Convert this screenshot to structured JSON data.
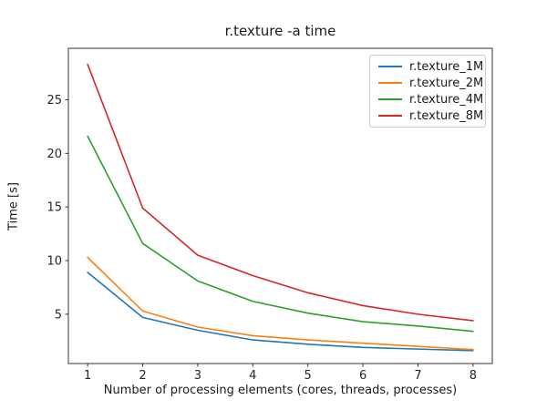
{
  "chart_data": {
    "type": "line",
    "title": "r.texture -a time",
    "xlabel": "Number of processing elements (cores, threads, processes)",
    "ylabel": "Time [s]",
    "x": [
      1,
      2,
      3,
      4,
      5,
      6,
      7,
      8
    ],
    "x_ticks": [
      1,
      2,
      3,
      4,
      5,
      6,
      7,
      8
    ],
    "x_tick_labels": [
      "1",
      "2",
      "3",
      "4",
      "5",
      "6",
      "7",
      "8"
    ],
    "y_ticks": [
      5,
      10,
      15,
      20,
      25
    ],
    "y_tick_labels": [
      "5",
      "10",
      "15",
      "20",
      "25"
    ],
    "xlim": [
      0.65,
      8.35
    ],
    "ylim": [
      0.4,
      29.8
    ],
    "grid": false,
    "legend_position": "upper right",
    "spine_color": "#555555",
    "tick_color": "#333333",
    "series": [
      {
        "name": "r.texture_1M",
        "color": "#1f77b4",
        "values": [
          8.9,
          4.7,
          3.5,
          2.6,
          2.2,
          1.9,
          1.75,
          1.6
        ]
      },
      {
        "name": "r.texture_2M",
        "color": "#ff7f0e",
        "values": [
          10.3,
          5.3,
          3.8,
          3.0,
          2.6,
          2.3,
          2.0,
          1.7
        ]
      },
      {
        "name": "r.texture_4M",
        "color": "#2ca02c",
        "values": [
          21.6,
          11.6,
          8.1,
          6.2,
          5.1,
          4.3,
          3.9,
          3.4
        ]
      },
      {
        "name": "r.texture_8M",
        "color": "#d62728",
        "values": [
          28.3,
          14.9,
          10.5,
          8.6,
          7.0,
          5.8,
          5.0,
          4.4
        ]
      }
    ]
  }
}
